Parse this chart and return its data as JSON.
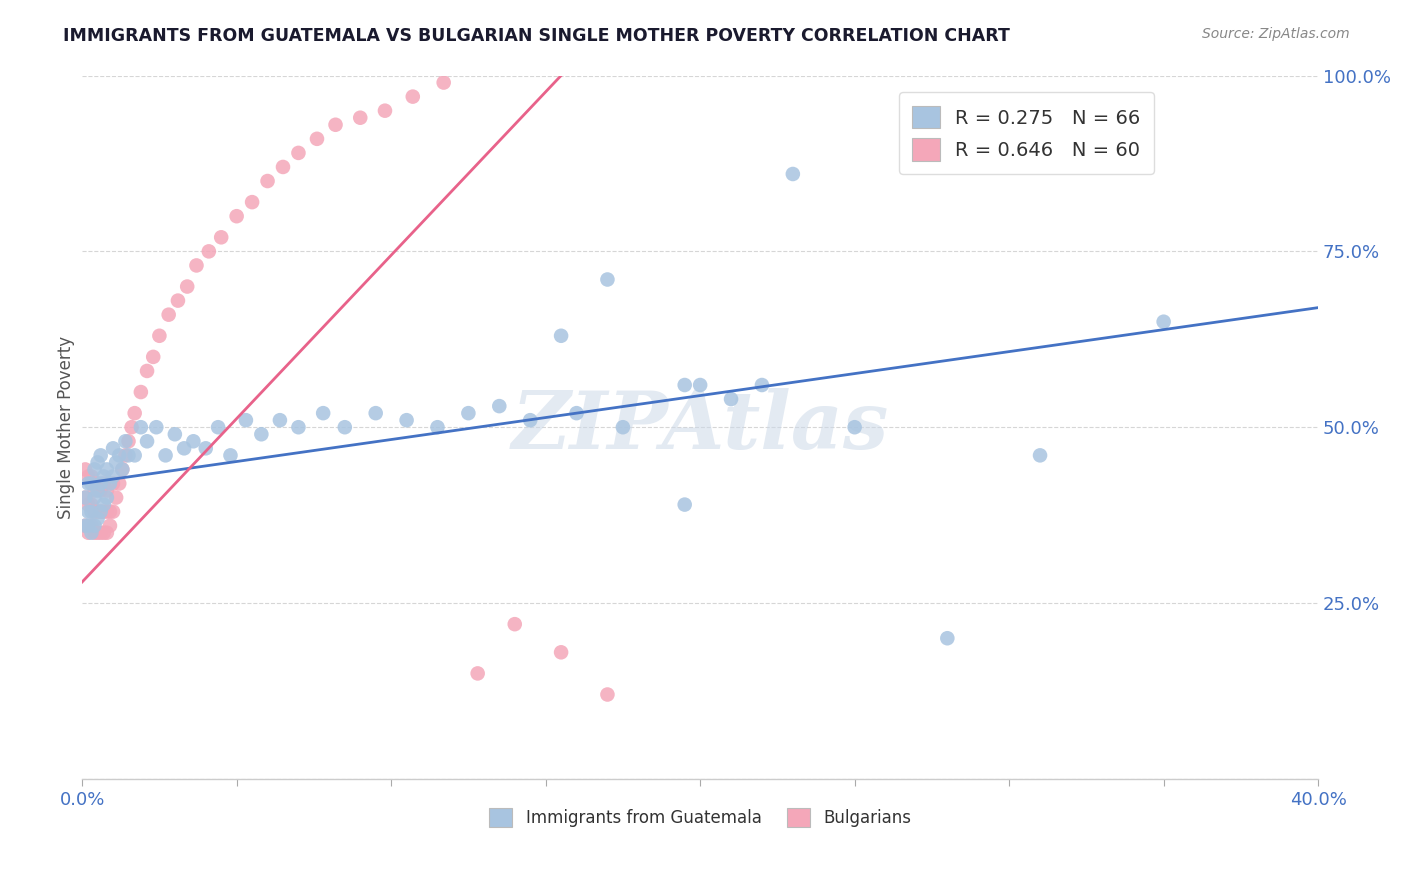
{
  "title": "IMMIGRANTS FROM GUATEMALA VS BULGARIAN SINGLE MOTHER POVERTY CORRELATION CHART",
  "source": "Source: ZipAtlas.com",
  "xlabel_blue": "Immigrants from Guatemala",
  "xlabel_pink": "Bulgarians",
  "ylabel": "Single Mother Poverty",
  "xlim": [
    0,
    0.4
  ],
  "ylim": [
    0,
    1.0
  ],
  "blue_R": 0.275,
  "blue_N": 66,
  "pink_R": 0.646,
  "pink_N": 60,
  "blue_color": "#a8c4e0",
  "pink_color": "#f4a7b9",
  "blue_line_color": "#4472c4",
  "pink_line_color": "#e8628a",
  "watermark": "ZIPAtlas",
  "blue_line_x0": 0.0,
  "blue_line_y0": 0.42,
  "blue_line_x1": 0.4,
  "blue_line_y1": 0.67,
  "pink_line_x0": 0.0,
  "pink_line_y0": 0.28,
  "pink_line_x1": 0.155,
  "pink_line_y1": 1.0,
  "blue_scatter_x": [
    0.001,
    0.001,
    0.002,
    0.002,
    0.002,
    0.003,
    0.003,
    0.003,
    0.004,
    0.004,
    0.004,
    0.005,
    0.005,
    0.005,
    0.006,
    0.006,
    0.006,
    0.007,
    0.007,
    0.008,
    0.008,
    0.009,
    0.01,
    0.01,
    0.011,
    0.012,
    0.013,
    0.014,
    0.015,
    0.017,
    0.019,
    0.021,
    0.024,
    0.027,
    0.03,
    0.033,
    0.036,
    0.04,
    0.044,
    0.048,
    0.053,
    0.058,
    0.064,
    0.07,
    0.078,
    0.085,
    0.095,
    0.105,
    0.115,
    0.125,
    0.135,
    0.145,
    0.16,
    0.175,
    0.195,
    0.21,
    0.23,
    0.25,
    0.28,
    0.31,
    0.155,
    0.17,
    0.2,
    0.35,
    0.195,
    0.22
  ],
  "blue_scatter_y": [
    0.36,
    0.4,
    0.36,
    0.38,
    0.42,
    0.35,
    0.38,
    0.42,
    0.36,
    0.4,
    0.44,
    0.37,
    0.41,
    0.45,
    0.38,
    0.42,
    0.46,
    0.39,
    0.43,
    0.4,
    0.44,
    0.42,
    0.43,
    0.47,
    0.45,
    0.46,
    0.44,
    0.48,
    0.46,
    0.46,
    0.5,
    0.48,
    0.5,
    0.46,
    0.49,
    0.47,
    0.48,
    0.47,
    0.5,
    0.46,
    0.51,
    0.49,
    0.51,
    0.5,
    0.52,
    0.5,
    0.52,
    0.51,
    0.5,
    0.52,
    0.53,
    0.51,
    0.52,
    0.5,
    0.56,
    0.54,
    0.86,
    0.5,
    0.2,
    0.46,
    0.63,
    0.71,
    0.56,
    0.65,
    0.39,
    0.56
  ],
  "pink_scatter_x": [
    0.001,
    0.001,
    0.001,
    0.002,
    0.002,
    0.002,
    0.003,
    0.003,
    0.003,
    0.004,
    0.004,
    0.004,
    0.005,
    0.005,
    0.005,
    0.006,
    0.006,
    0.006,
    0.007,
    0.007,
    0.007,
    0.008,
    0.008,
    0.008,
    0.009,
    0.009,
    0.01,
    0.01,
    0.011,
    0.012,
    0.013,
    0.014,
    0.015,
    0.016,
    0.017,
    0.019,
    0.021,
    0.023,
    0.025,
    0.028,
    0.031,
    0.034,
    0.037,
    0.041,
    0.045,
    0.05,
    0.055,
    0.06,
    0.065,
    0.07,
    0.076,
    0.082,
    0.09,
    0.098,
    0.107,
    0.117,
    0.128,
    0.14,
    0.155,
    0.17
  ],
  "pink_scatter_y": [
    0.36,
    0.4,
    0.44,
    0.35,
    0.39,
    0.43,
    0.36,
    0.39,
    0.43,
    0.35,
    0.38,
    0.41,
    0.35,
    0.38,
    0.42,
    0.35,
    0.38,
    0.41,
    0.35,
    0.38,
    0.42,
    0.35,
    0.38,
    0.41,
    0.36,
    0.38,
    0.38,
    0.42,
    0.4,
    0.42,
    0.44,
    0.46,
    0.48,
    0.5,
    0.52,
    0.55,
    0.58,
    0.6,
    0.63,
    0.66,
    0.68,
    0.7,
    0.73,
    0.75,
    0.77,
    0.8,
    0.82,
    0.85,
    0.87,
    0.89,
    0.91,
    0.93,
    0.94,
    0.95,
    0.97,
    0.99,
    0.15,
    0.22,
    0.18,
    0.12
  ]
}
